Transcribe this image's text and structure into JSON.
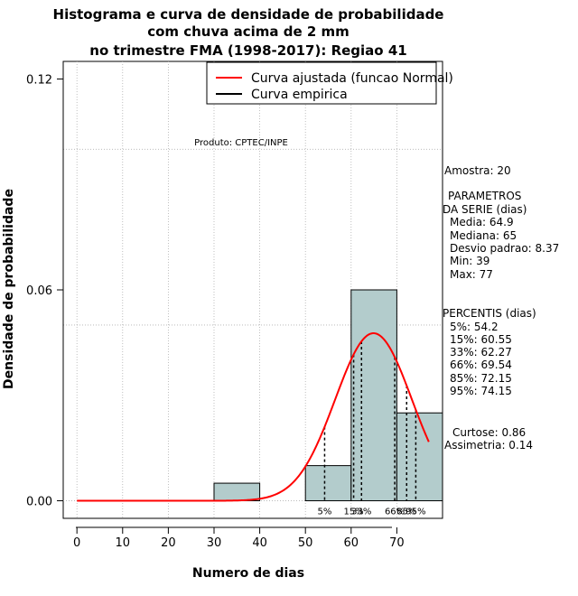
{
  "chart_data": {
    "type": "bar",
    "title": [
      "Histograma e curva de densidade de probabilidade",
      "com chuva acima de 2 mm",
      "no trimestre FMA (1998-2017): Regiao 41"
    ],
    "xlabel": "Numero de dias",
    "ylabel": "Densidade de probabilidade",
    "xlim": [
      -3,
      80
    ],
    "ylim": [
      -0.005,
      0.125
    ],
    "xticks": [
      0,
      10,
      20,
      30,
      40,
      50,
      60,
      70
    ],
    "xtick_labels": [
      "0",
      "10",
      "20",
      "30",
      "40",
      "50",
      "60",
      "70"
    ],
    "yticks": [
      0.0,
      0.06,
      0.12
    ],
    "ytick_labels": [
      "0.00",
      "0.06",
      "0.12"
    ],
    "grid_x": [
      0,
      10,
      20,
      30,
      40,
      50,
      60,
      70
    ],
    "grid_y": [
      0.0,
      0.05,
      0.1
    ],
    "bins": [
      {
        "start": 30,
        "end": 40,
        "density": 0.005
      },
      {
        "start": 50,
        "end": 60,
        "density": 0.01
      },
      {
        "start": 60,
        "end": 70,
        "density": 0.06
      },
      {
        "start": 70,
        "end": 80,
        "density": 0.025
      }
    ],
    "fitted_curve": {
      "name": "Curva ajustada (funcao Normal)",
      "mean": 64.9,
      "sd": 8.37,
      "x_from": 0,
      "x_to": 77,
      "color": "#ff0000"
    },
    "empirical_curve": {
      "name": "Curva empirica",
      "color": "#000000"
    },
    "percentile_markers": [
      {
        "label": "5%",
        "value": 54.2
      },
      {
        "label": "15%",
        "value": 60.55
      },
      {
        "label": "33%",
        "value": 62.27
      },
      {
        "label": "66%",
        "value": 69.54
      },
      {
        "label": "85%",
        "value": 72.15
      },
      {
        "label": "95%",
        "value": 74.15
      }
    ],
    "legend": {
      "placement": "top-right",
      "entries": [
        {
          "label": "Curva ajustada (funcao Normal)",
          "color": "#ff0000"
        },
        {
          "label": "Curva empirica",
          "color": "#000000"
        }
      ]
    },
    "annotations": {
      "produto": "Produto: CPTEC/INPE",
      "amostra": "Amostra: 20",
      "parametros_title": [
        "PARAMETROS",
        "DA SERIE (dias)"
      ],
      "parametros": [
        "Media: 64.9",
        "Mediana: 65",
        "Desvio padrao: 8.37",
        "Min: 39",
        "Max: 77"
      ],
      "percentis_title": "PERCENTIS (dias)",
      "percentis": [
        "5%: 54.2",
        "15%: 60.55",
        "33%: 62.27",
        "66%: 69.54",
        "85%: 72.15",
        "95%: 74.15"
      ],
      "curtose": "Curtose: 0.86",
      "assimetria": "Assimetria: 0.14"
    },
    "colors": {
      "bar_fill": "#b3cccc",
      "bar_stroke": "#000000",
      "grid": "#b0b0b0",
      "fit": "#ff0000"
    }
  }
}
